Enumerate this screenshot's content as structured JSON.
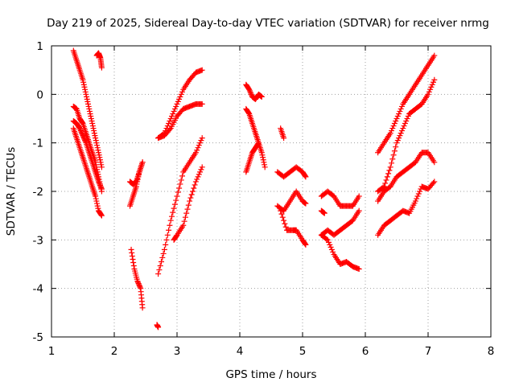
{
  "chart_data": {
    "type": "scatter",
    "title": "Day 219 of 2025, Sidereal Day-to-day VTEC variation (SDTVAR) for receiver nrmg",
    "xlabel": "GPS time / hours",
    "ylabel": "SDTVAR / TECUs",
    "xlim": [
      1,
      8
    ],
    "ylim": [
      -5,
      1
    ],
    "xticks": [
      "1",
      "2",
      "3",
      "4",
      "5",
      "6",
      "7",
      "8"
    ],
    "yticks": [
      "1",
      "0",
      "-1",
      "-2",
      "-3",
      "-4",
      "-5"
    ],
    "grid": true,
    "marker": "plus",
    "color": "#ff0000",
    "series": [
      {
        "x": [
          1.35,
          1.4,
          1.45,
          1.5,
          1.55,
          1.6,
          1.65,
          1.7,
          1.75,
          1.8
        ],
        "y": [
          0.9,
          0.7,
          0.5,
          0.3,
          0.0,
          -0.3,
          -0.6,
          -0.9,
          -1.2,
          -1.5
        ]
      },
      {
        "x": [
          1.35,
          1.4,
          1.45,
          1.5,
          1.55,
          1.6,
          1.65,
          1.7,
          1.75,
          1.8
        ],
        "y": [
          -0.25,
          -0.3,
          -0.5,
          -0.6,
          -0.8,
          -1.0,
          -1.2,
          -1.4,
          -1.7,
          -2.0
        ]
      },
      {
        "x": [
          1.35,
          1.4,
          1.45,
          1.5,
          1.55,
          1.6,
          1.65,
          1.7,
          1.75,
          1.8
        ],
        "y": [
          -0.55,
          -0.6,
          -0.7,
          -0.85,
          -1.0,
          -1.2,
          -1.4,
          -1.6,
          -1.8,
          -1.95
        ]
      },
      {
        "x": [
          1.35,
          1.4,
          1.45,
          1.5,
          1.55,
          1.6,
          1.65,
          1.7,
          1.75,
          1.8
        ],
        "y": [
          -0.7,
          -0.9,
          -1.1,
          -1.3,
          -1.5,
          -1.7,
          -1.9,
          -2.1,
          -2.4,
          -2.5
        ]
      },
      {
        "x": [
          1.72,
          1.75,
          1.78,
          1.8
        ],
        "y": [
          0.8,
          0.85,
          0.75,
          0.55
        ]
      },
      {
        "x": [
          2.25,
          2.3,
          2.35,
          2.4,
          2.45
        ],
        "y": [
          -2.3,
          -2.1,
          -1.9,
          -1.6,
          -1.4
        ]
      },
      {
        "x": [
          2.25,
          2.3,
          2.35,
          2.4,
          2.45
        ],
        "y": [
          -1.8,
          -1.85,
          -1.8,
          -1.6,
          -1.4
        ]
      },
      {
        "x": [
          2.27,
          2.32,
          2.37,
          2.42,
          2.45
        ],
        "y": [
          -3.2,
          -3.6,
          -3.85,
          -4.0,
          -4.4
        ]
      },
      {
        "x": [
          2.68,
          2.7
        ],
        "y": [
          -4.75,
          -4.8
        ]
      },
      {
        "x": [
          2.7,
          2.8,
          2.9,
          3.0,
          3.1,
          3.2,
          3.3,
          3.4
        ],
        "y": [
          -0.9,
          -0.8,
          -0.5,
          -0.2,
          0.1,
          0.3,
          0.45,
          0.5
        ]
      },
      {
        "x": [
          2.7,
          2.8,
          2.9,
          3.0,
          3.1,
          3.2,
          3.3,
          3.4
        ],
        "y": [
          -0.9,
          -0.85,
          -0.7,
          -0.45,
          -0.3,
          -0.25,
          -0.2,
          -0.2
        ]
      },
      {
        "x": [
          2.7,
          2.8,
          2.9,
          3.0,
          3.1,
          3.2,
          3.3,
          3.4
        ],
        "y": [
          -3.7,
          -3.2,
          -2.6,
          -2.1,
          -1.6,
          -1.4,
          -1.2,
          -0.9
        ]
      },
      {
        "x": [
          2.95,
          3.0,
          3.1,
          3.2,
          3.3,
          3.4
        ],
        "y": [
          -3.0,
          -2.9,
          -2.7,
          -2.2,
          -1.8,
          -1.5
        ]
      },
      {
        "x": [
          4.1,
          4.15,
          4.2,
          4.25,
          4.3,
          4.35
        ],
        "y": [
          0.2,
          0.1,
          -0.05,
          -0.1,
          0.0,
          -0.05
        ]
      },
      {
        "x": [
          4.1,
          4.15,
          4.2,
          4.25,
          4.3,
          4.35,
          4.4
        ],
        "y": [
          -0.3,
          -0.4,
          -0.6,
          -0.8,
          -1.0,
          -1.2,
          -1.5
        ]
      },
      {
        "x": [
          4.1,
          4.15,
          4.2,
          4.25,
          4.3
        ],
        "y": [
          -1.6,
          -1.4,
          -1.2,
          -1.1,
          -1.0
        ]
      },
      {
        "x": [
          4.65,
          4.7
        ],
        "y": [
          -0.7,
          -0.9
        ]
      },
      {
        "x": [
          4.6,
          4.7,
          4.8,
          4.9,
          5.0,
          5.05
        ],
        "y": [
          -1.6,
          -1.7,
          -1.6,
          -1.5,
          -1.6,
          -1.7
        ]
      },
      {
        "x": [
          4.6,
          4.7,
          4.8,
          4.9,
          5.0,
          5.05
        ],
        "y": [
          -2.3,
          -2.4,
          -2.2,
          -2.0,
          -2.2,
          -2.25
        ]
      },
      {
        "x": [
          4.65,
          4.75,
          4.85,
          4.9,
          5.0,
          5.05
        ],
        "y": [
          -2.4,
          -2.8,
          -2.8,
          -2.8,
          -3.0,
          -3.1
        ]
      },
      {
        "x": [
          5.3,
          5.4,
          5.5,
          5.6,
          5.7,
          5.8,
          5.9
        ],
        "y": [
          -2.1,
          -2.0,
          -2.1,
          -2.3,
          -2.3,
          -2.3,
          -2.1
        ]
      },
      {
        "x": [
          5.3,
          5.4,
          5.5,
          5.6,
          5.7,
          5.8,
          5.9
        ],
        "y": [
          -2.9,
          -2.8,
          -2.9,
          -2.8,
          -2.7,
          -2.6,
          -2.4
        ]
      },
      {
        "x": [
          5.3,
          5.4,
          5.5,
          5.6,
          5.7,
          5.8,
          5.9
        ],
        "y": [
          -2.9,
          -3.0,
          -3.3,
          -3.5,
          -3.45,
          -3.55,
          -3.6
        ]
      },
      {
        "x": [
          5.3,
          5.35
        ],
        "y": [
          -2.4,
          -2.45
        ]
      },
      {
        "x": [
          6.2,
          6.3,
          6.4,
          6.5,
          6.6,
          6.7,
          6.8,
          6.9,
          7.0,
          7.1
        ],
        "y": [
          -1.2,
          -1.0,
          -0.8,
          -0.5,
          -0.2,
          0.0,
          0.2,
          0.4,
          0.6,
          0.8
        ]
      },
      {
        "x": [
          6.2,
          6.3,
          6.4,
          6.5,
          6.6,
          6.7,
          6.8,
          6.9,
          7.0,
          7.1
        ],
        "y": [
          -2.0,
          -1.9,
          -1.5,
          -1.0,
          -0.7,
          -0.4,
          -0.3,
          -0.2,
          0.0,
          0.3
        ]
      },
      {
        "x": [
          6.2,
          6.3,
          6.4,
          6.5,
          6.6,
          6.7,
          6.8,
          6.9,
          7.0,
          7.1
        ],
        "y": [
          -2.2,
          -2.0,
          -1.9,
          -1.7,
          -1.6,
          -1.5,
          -1.4,
          -1.2,
          -1.2,
          -1.4
        ]
      },
      {
        "x": [
          6.2,
          6.3,
          6.4,
          6.5,
          6.6,
          6.7,
          6.8,
          6.9,
          7.0,
          7.1
        ],
        "y": [
          -2.9,
          -2.7,
          -2.6,
          -2.5,
          -2.4,
          -2.45,
          -2.2,
          -1.9,
          -1.95,
          -1.8
        ]
      }
    ]
  }
}
